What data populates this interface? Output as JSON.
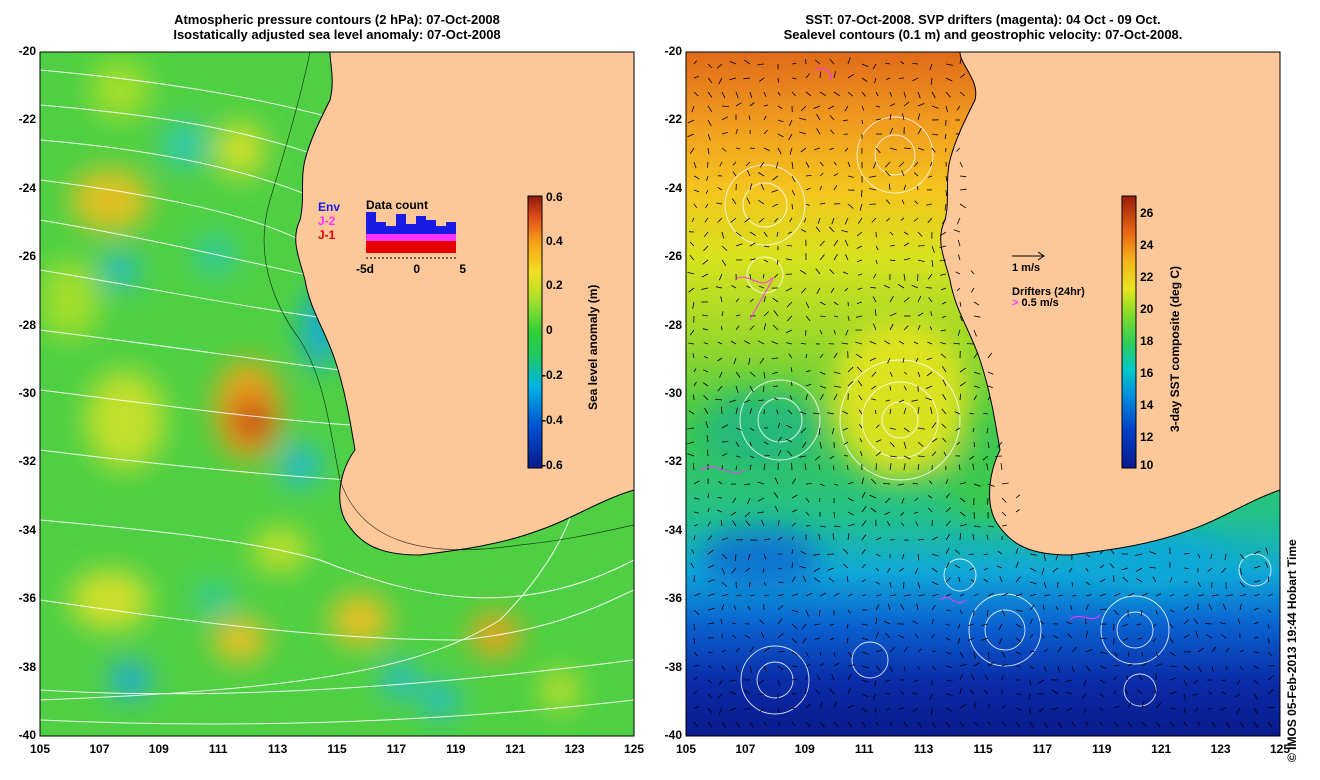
{
  "left_panel": {
    "title_line1": "Atmospheric pressure contours (2 hPa): 07-Oct-2008",
    "title_line2": "Isostatically adjusted sea level anomaly: 07-Oct-2008",
    "colorbar": {
      "label": "Sea level anomaly (m)",
      "ticks": [
        "0.6",
        "0.4",
        "0.2",
        "0",
        "-0.2",
        "-0.4",
        "-0.6"
      ],
      "range": [
        -0.6,
        0.6
      ]
    },
    "legend": {
      "env_label": "Env",
      "j2_label": "J-2",
      "j1_label": "J-1",
      "data_count_label": "Data count",
      "axis_ticks": [
        "-5d",
        "0",
        "5"
      ],
      "colors": {
        "env": "#1a1ae6",
        "j2": "#ff33ff",
        "j1": "#e60000"
      }
    }
  },
  "right_panel": {
    "title_line1": "SST: 07-Oct-2008. SVP drifters (magenta): 04 Oct - 09 Oct.",
    "title_line2": "Sealevel contours (0.1 m) and geostrophic velocity: 07-Oct-2008.",
    "colorbar": {
      "label": "3-day SST composite (deg C)",
      "ticks": [
        "26",
        "24",
        "22",
        "20",
        "18",
        "16",
        "14",
        "12",
        "10"
      ],
      "range": [
        10,
        27
      ]
    },
    "legend": {
      "velocity_label": "1 m/s",
      "drifters_label": "Drifters (24hr)",
      "drifter_speed_label": "0.5 m/s",
      "drifter_color": "#ff33ff"
    }
  },
  "axes": {
    "latitudes": [
      "-20",
      "-22",
      "-24",
      "-26",
      "-28",
      "-30",
      "-32",
      "-34",
      "-36",
      "-38",
      "-40"
    ],
    "longitudes": [
      "105",
      "107",
      "109",
      "111",
      "113",
      "115",
      "117",
      "119",
      "121",
      "123",
      "125"
    ],
    "lat_range": [
      -40,
      -20
    ],
    "lon_range": [
      105,
      125
    ]
  },
  "credit": "© IMOS 05-Feb-2013 19:44 Hobart Time",
  "colors": {
    "land": "#fcc899",
    "coast": "#000000",
    "contour": "#ffffff"
  }
}
